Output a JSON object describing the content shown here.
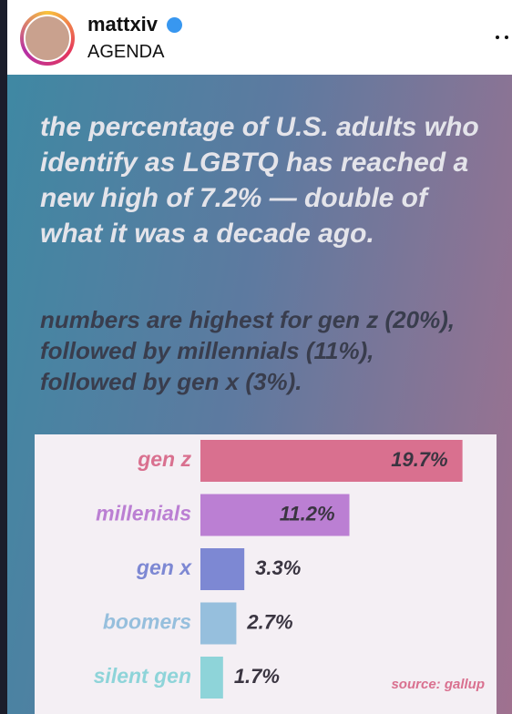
{
  "post": {
    "username": "mattxiv",
    "location": "AGENDA"
  },
  "headline": "the percentage of U.S. adults who identify as LGBTQ has reached a new high of 7.2% — double of what it was a decade ago.",
  "subhead": "numbers are highest for gen z (20%), followed by millennials (11%), followed by gen x (3%).",
  "chart_data": {
    "type": "bar",
    "orientation": "horizontal",
    "categories": [
      "gen z",
      "millenials",
      "gen x",
      "boomers",
      "silent gen"
    ],
    "values": [
      19.7,
      11.2,
      3.3,
      2.7,
      1.7
    ],
    "value_labels": [
      "19.7%",
      "11.2%",
      "3.3%",
      "2.7%",
      "1.7%"
    ],
    "colors": [
      "#d9708f",
      "#bb7fd3",
      "#7d88d3",
      "#96bfdd",
      "#8ed4d9"
    ],
    "xlim": [
      0,
      20
    ],
    "note": "source: gallup"
  }
}
